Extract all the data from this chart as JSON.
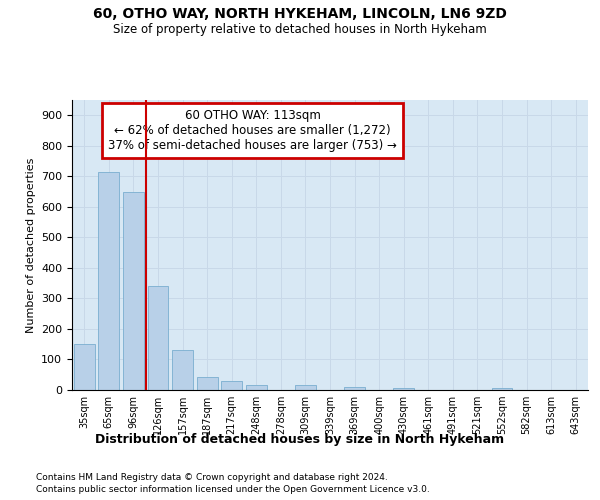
{
  "title_line1": "60, OTHO WAY, NORTH HYKEHAM, LINCOLN, LN6 9ZD",
  "title_line2": "Size of property relative to detached houses in North Hykeham",
  "xlabel": "Distribution of detached houses by size in North Hykeham",
  "ylabel": "Number of detached properties",
  "footnote1": "Contains HM Land Registry data © Crown copyright and database right 2024.",
  "footnote2": "Contains public sector information licensed under the Open Government Licence v3.0.",
  "bar_labels": [
    "35sqm",
    "65sqm",
    "96sqm",
    "126sqm",
    "157sqm",
    "187sqm",
    "217sqm",
    "248sqm",
    "278sqm",
    "309sqm",
    "339sqm",
    "369sqm",
    "400sqm",
    "430sqm",
    "461sqm",
    "491sqm",
    "521sqm",
    "552sqm",
    "582sqm",
    "613sqm",
    "643sqm"
  ],
  "bar_values": [
    150,
    715,
    650,
    340,
    130,
    42,
    30,
    15,
    0,
    15,
    0,
    10,
    0,
    8,
    0,
    0,
    0,
    8,
    0,
    0,
    0
  ],
  "bar_color": "#b8d0e8",
  "bar_edgecolor": "#7aaed0",
  "grid_color": "#c8d8e8",
  "bg_color": "#d8e8f4",
  "annotation_text": "60 OTHO WAY: 113sqm\n← 62% of detached houses are smaller (1,272)\n37% of semi-detached houses are larger (753) →",
  "vline_x": 2.5,
  "vline_color": "#cc0000",
  "annotation_box_edgecolor": "#cc0000",
  "ylim": [
    0,
    950
  ],
  "yticks": [
    0,
    100,
    200,
    300,
    400,
    500,
    600,
    700,
    800,
    900
  ]
}
